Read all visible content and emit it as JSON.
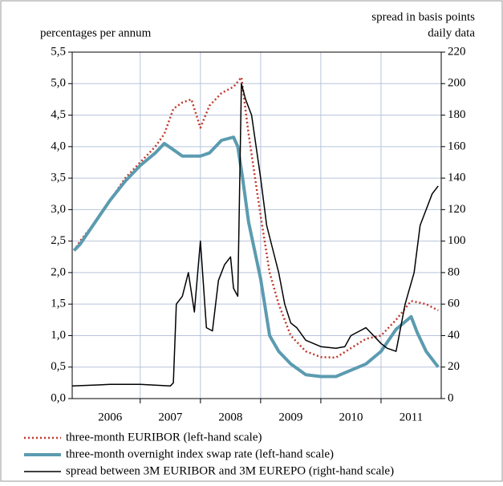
{
  "chart_data": {
    "type": "line",
    "y_label": "percentages per annum",
    "y2_label": [
      "spread in basis points",
      "daily data"
    ],
    "xlim": [
      2005.87,
      2012.0
    ],
    "xticks": [
      {
        "value": 2006.5,
        "label": "2006"
      },
      {
        "value": 2007.5,
        "label": "2007"
      },
      {
        "value": 2008.5,
        "label": "2008"
      },
      {
        "value": 2009.5,
        "label": "2009"
      },
      {
        "value": 2010.5,
        "label": "2010"
      },
      {
        "value": 2011.5,
        "label": "2011"
      }
    ],
    "xgrid": [
      2007,
      2008,
      2009,
      2010,
      2011
    ],
    "ylim": [
      0,
      5.5
    ],
    "yticks": [
      {
        "value": 0,
        "label": "0,0"
      },
      {
        "value": 0.5,
        "label": "0,5"
      },
      {
        "value": 1,
        "label": "1,0"
      },
      {
        "value": 1.5,
        "label": "1,5"
      },
      {
        "value": 2,
        "label": "2,0"
      },
      {
        "value": 2.5,
        "label": "2,5"
      },
      {
        "value": 3,
        "label": "3,0"
      },
      {
        "value": 3.5,
        "label": "3,5"
      },
      {
        "value": 4,
        "label": "4,0"
      },
      {
        "value": 4.5,
        "label": "4,5"
      },
      {
        "value": 5,
        "label": "5,0"
      },
      {
        "value": 5.5,
        "label": "5,5"
      }
    ],
    "y2lim": [
      0,
      220
    ],
    "y2ticks": [
      0,
      20,
      40,
      60,
      80,
      100,
      120,
      140,
      160,
      180,
      200,
      220
    ],
    "grid": true,
    "series": [
      {
        "name": "three-month EURIBOR (left-hand scale)",
        "color": "#c0392b",
        "style": "dotted",
        "x": [
          2005.9,
          2006.0,
          2006.25,
          2006.5,
          2006.75,
          2007.0,
          2007.25,
          2007.4,
          2007.55,
          2007.7,
          2007.85,
          2008.0,
          2008.15,
          2008.35,
          2008.55,
          2008.68,
          2008.8,
          2009.0,
          2009.15,
          2009.3,
          2009.5,
          2009.75,
          2010.0,
          2010.25,
          2010.5,
          2010.75,
          2011.0,
          2011.25,
          2011.5,
          2011.75,
          2011.95
        ],
        "values": [
          2.35,
          2.5,
          2.8,
          3.15,
          3.5,
          3.75,
          4.0,
          4.2,
          4.6,
          4.7,
          4.75,
          4.3,
          4.65,
          4.85,
          4.95,
          5.1,
          4.2,
          2.9,
          2.0,
          1.5,
          1.0,
          0.75,
          0.66,
          0.65,
          0.8,
          0.95,
          1.0,
          1.25,
          1.55,
          1.5,
          1.4
        ]
      },
      {
        "name": "three-month overnight index swap rate (left-hand scale)",
        "color": "#5b9bb0",
        "style": "solid",
        "x": [
          2005.9,
          2006.0,
          2006.25,
          2006.5,
          2006.75,
          2007.0,
          2007.25,
          2007.4,
          2007.55,
          2007.7,
          2007.85,
          2008.0,
          2008.15,
          2008.35,
          2008.55,
          2008.62,
          2008.7,
          2008.8,
          2009.0,
          2009.15,
          2009.3,
          2009.5,
          2009.75,
          2010.0,
          2010.25,
          2010.5,
          2010.75,
          2011.0,
          2011.25,
          2011.5,
          2011.6,
          2011.75,
          2011.95
        ],
        "values": [
          2.35,
          2.45,
          2.8,
          3.15,
          3.45,
          3.7,
          3.9,
          4.05,
          3.95,
          3.85,
          3.85,
          3.85,
          3.9,
          4.1,
          4.15,
          4.0,
          3.5,
          2.8,
          1.9,
          1.0,
          0.75,
          0.55,
          0.38,
          0.35,
          0.35,
          0.45,
          0.55,
          0.75,
          1.1,
          1.3,
          1.05,
          0.75,
          0.5
        ]
      },
      {
        "name": "spread between 3M EURIBOR and 3M EUREPO (right-hand scale)",
        "color": "#000000",
        "style": "thin",
        "axis": "y2",
        "x": [
          2005.87,
          2006.5,
          2007.0,
          2007.5,
          2007.55,
          2007.6,
          2007.7,
          2007.8,
          2007.9,
          2008.0,
          2008.1,
          2008.2,
          2008.3,
          2008.4,
          2008.5,
          2008.55,
          2008.62,
          2008.68,
          2008.75,
          2008.85,
          2009.0,
          2009.1,
          2009.2,
          2009.3,
          2009.4,
          2009.5,
          2009.6,
          2009.75,
          2010.0,
          2010.25,
          2010.4,
          2010.5,
          2010.6,
          2010.75,
          2011.0,
          2011.1,
          2011.25,
          2011.4,
          2011.55,
          2011.65,
          2011.75,
          2011.85,
          2011.95
        ],
        "values": [
          8,
          9,
          9,
          8,
          10,
          60,
          65,
          80,
          55,
          100,
          45,
          43,
          75,
          85,
          90,
          70,
          65,
          200,
          190,
          180,
          140,
          110,
          95,
          80,
          60,
          48,
          45,
          37,
          33,
          32,
          33,
          40,
          42,
          45,
          35,
          32,
          30,
          60,
          80,
          110,
          120,
          130,
          135
        ]
      }
    ]
  }
}
